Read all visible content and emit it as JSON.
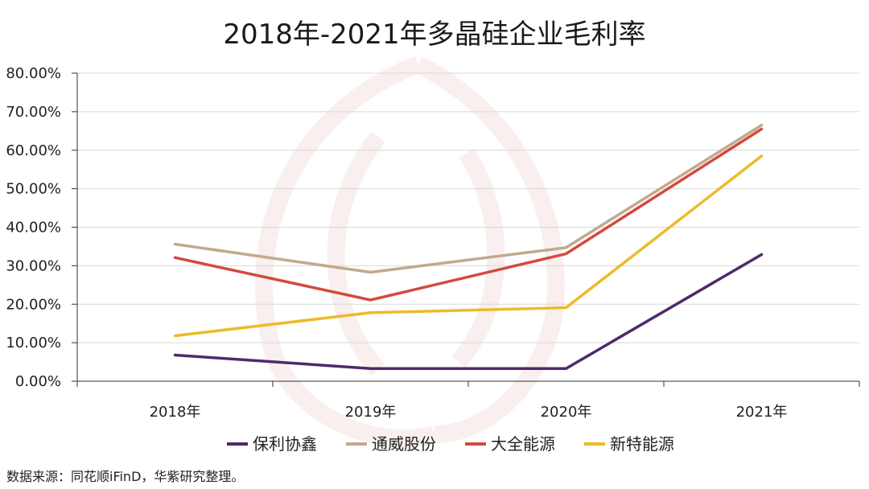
{
  "chart_data": {
    "type": "line",
    "title": "2018年-2021年多晶硅企业毛利率",
    "categories": [
      "2018年",
      "2019年",
      "2020年",
      "2021年"
    ],
    "ylim": [
      0,
      0.8
    ],
    "yticks": [
      "0.00%",
      "10.00%",
      "20.00%",
      "30.00%",
      "40.00%",
      "50.00%",
      "60.00%",
      "70.00%",
      "80.00%"
    ],
    "grid": true,
    "legend_position": "bottom",
    "series": [
      {
        "name": "保利协鑫",
        "color": "#4e2a6b",
        "values": [
          0.068,
          0.033,
          0.033,
          0.329
        ]
      },
      {
        "name": "通威股份",
        "color": "#c2a98c",
        "values": [
          0.356,
          0.283,
          0.347,
          0.665
        ]
      },
      {
        "name": "大全能源",
        "color": "#d24a3c",
        "values": [
          0.321,
          0.211,
          0.331,
          0.655
        ]
      },
      {
        "name": "新特能源",
        "color": "#ecbb2a",
        "values": [
          0.118,
          0.178,
          0.191,
          0.585
        ]
      }
    ]
  },
  "source_text": "数据来源：同花顺iFinD，华紫研究整理。"
}
